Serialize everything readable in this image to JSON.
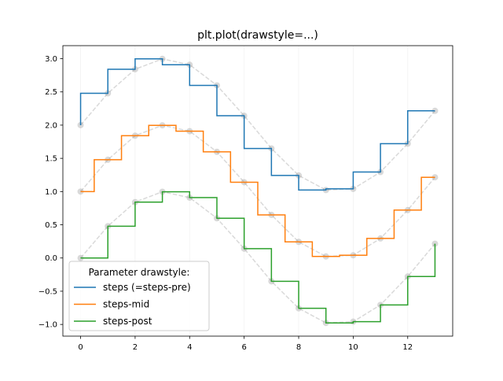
{
  "chart_data": {
    "type": "line",
    "title": "plt.plot(drawstyle=...)",
    "xlabel": "",
    "ylabel": "",
    "xlim": [
      -0.65,
      13.65
    ],
    "ylim": [
      -1.176,
      3.196
    ],
    "grid": {
      "x": true,
      "y": false,
      "color": "#f2f2f2"
    },
    "xticks": [
      0,
      2,
      4,
      6,
      8,
      10,
      12
    ],
    "yticks": [
      -1.0,
      -0.5,
      0.0,
      0.5,
      1.0,
      1.5,
      2.0,
      2.5,
      3.0
    ],
    "ytick_labels": [
      "−1.0",
      "−0.5",
      "0.0",
      "0.5",
      "1.0",
      "1.5",
      "2.0",
      "2.5",
      "3.0"
    ],
    "x": [
      0,
      1,
      2,
      3,
      4,
      5,
      6,
      7,
      8,
      9,
      10,
      11,
      12,
      13
    ],
    "legend": {
      "title": "Parameter drawstyle:",
      "placement": "lower-left"
    },
    "series": [
      {
        "name": "steps (=steps-pre)",
        "drawstyle": "steps-pre",
        "color": "#1f77b4",
        "values": [
          2.0,
          2.479,
          2.841,
          2.997,
          2.909,
          2.598,
          2.141,
          1.649,
          1.243,
          1.023,
          1.041,
          1.294,
          1.721,
          2.215
        ]
      },
      {
        "name": "steps-mid",
        "drawstyle": "steps-mid",
        "color": "#ff7f0e",
        "values": [
          1.0,
          1.479,
          1.841,
          1.997,
          1.909,
          1.598,
          1.141,
          0.649,
          0.243,
          0.023,
          0.041,
          0.294,
          0.721,
          1.215
        ]
      },
      {
        "name": "steps-post",
        "drawstyle": "steps-post",
        "color": "#2ca02c",
        "values": [
          0.0,
          0.479,
          0.841,
          0.997,
          0.909,
          0.598,
          0.141,
          -0.351,
          -0.757,
          -0.977,
          -0.959,
          -0.706,
          -0.279,
          0.215
        ]
      }
    ],
    "reference_color": "#808080"
  }
}
